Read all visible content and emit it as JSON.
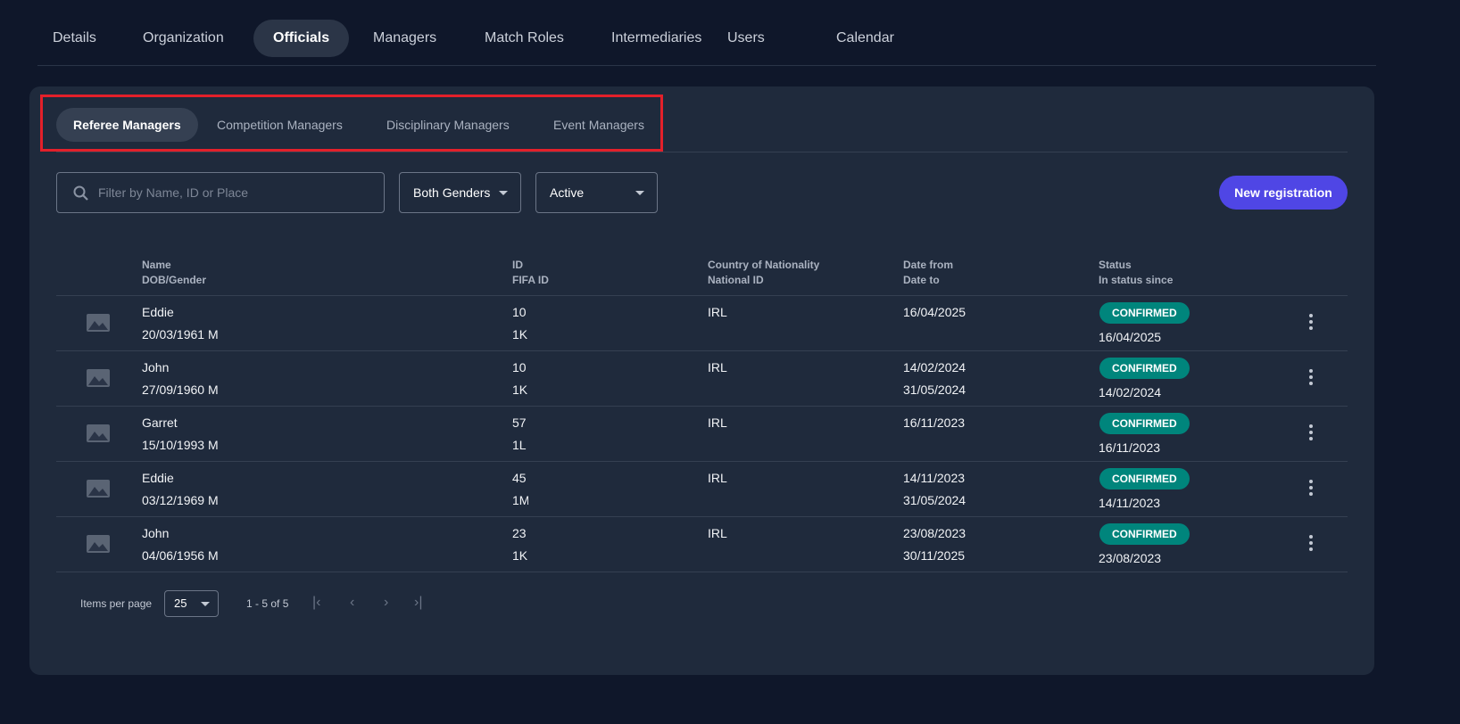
{
  "top_tabs": [
    "Details",
    "Organization",
    "Officials",
    "Managers",
    "Match Roles",
    "Intermediaries",
    "Users",
    "Calendar"
  ],
  "top_active": "Officials",
  "sub_tabs": [
    "Referee Managers",
    "Competition Managers",
    "Disciplinary Managers",
    "Event Managers"
  ],
  "sub_active": "Referee Managers",
  "filters": {
    "search_placeholder": "Filter by Name, ID or Place",
    "gender": "Both Genders",
    "status": "Active"
  },
  "new_registration": "New registration",
  "headers": {
    "name": "Name",
    "dob": "DOB/Gender",
    "id": "ID",
    "fifa": "FIFA ID",
    "country": "Country of Nationality",
    "national": "National ID",
    "from": "Date from",
    "to": "Date to",
    "status": "Status",
    "since": "In status since"
  },
  "rows": [
    {
      "name": "Eddie",
      "dob": "20/03/1961 M",
      "id": "10",
      "fifa": "1K",
      "country": "IRL",
      "from": "16/04/2025",
      "to": "",
      "status": "CONFIRMED",
      "since": "16/04/2025"
    },
    {
      "name": "John",
      "dob": "27/09/1960 M",
      "id": "10",
      "fifa": "1K",
      "country": "IRL",
      "from": "14/02/2024",
      "to": "31/05/2024",
      "status": "CONFIRMED",
      "since": "14/02/2024"
    },
    {
      "name": "Garret",
      "dob": "15/10/1993 M",
      "id": "57",
      "fifa": "1L",
      "country": "IRL",
      "from": "16/11/2023",
      "to": "",
      "status": "CONFIRMED",
      "since": "16/11/2023"
    },
    {
      "name": "Eddie",
      "dob": "03/12/1969 M",
      "id": "45",
      "fifa": "1M",
      "country": "IRL",
      "from": "14/11/2023",
      "to": "31/05/2024",
      "status": "CONFIRMED",
      "since": "14/11/2023"
    },
    {
      "name": "John",
      "dob": "04/06/1956 M",
      "id": "23",
      "fifa": "1K",
      "country": "IRL",
      "from": "23/08/2023",
      "to": "30/11/2025",
      "status": "CONFIRMED",
      "since": "23/08/2023"
    }
  ],
  "pagination": {
    "label": "Items per page",
    "size": "25",
    "range": "1 - 5 of 5"
  },
  "colors": {
    "accent": "#4f46e5",
    "confirmed": "#00857c",
    "highlight": "#e3202a"
  }
}
